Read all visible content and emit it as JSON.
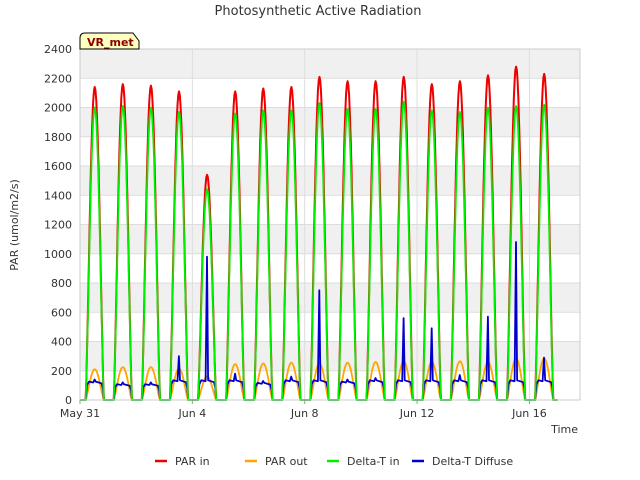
{
  "chart_data": {
    "type": "line",
    "title": "Photosynthetic Active Radiation",
    "xlabel": "Time",
    "ylabel": "PAR (umol/m2/s)",
    "site_label": "VR_met",
    "xlim": [
      0,
      17.8
    ],
    "ylim": [
      0,
      2400
    ],
    "yticks": [
      0,
      200,
      400,
      600,
      800,
      1000,
      1200,
      1400,
      1600,
      1800,
      2000,
      2200,
      2400
    ],
    "xticks": [
      {
        "value": 0,
        "label": "May 31"
      },
      {
        "value": 4,
        "label": "Jun 4"
      },
      {
        "value": 8,
        "label": "Jun 8"
      },
      {
        "value": 12,
        "label": "Jun 12"
      },
      {
        "value": 16,
        "label": "Jun 16"
      }
    ],
    "grid": true,
    "legend_position": "bottom",
    "day_peaks": {
      "days": [
        0,
        1,
        2,
        3,
        4,
        5,
        6,
        7,
        8,
        9,
        10,
        11,
        12,
        13,
        14,
        15,
        16
      ],
      "par_in": [
        2140,
        2160,
        2150,
        2110,
        1540,
        2110,
        2130,
        2140,
        2210,
        2180,
        2180,
        2210,
        2160,
        2180,
        2220,
        2280,
        2230
      ],
      "par_out": [
        210,
        225,
        225,
        215,
        160,
        245,
        250,
        255,
        250,
        255,
        260,
        265,
        260,
        265,
        260,
        285,
        285
      ],
      "delta_t_in": [
        2000,
        2010,
        2000,
        1970,
        1440,
        1960,
        1980,
        1980,
        2030,
        1990,
        1990,
        2040,
        1980,
        1970,
        2000,
        2010,
        2020
      ],
      "diffuse": [
        140,
        120,
        120,
        300,
        980,
        180,
        130,
        160,
        750,
        140,
        150,
        560,
        490,
        170,
        570,
        1080,
        290
      ]
    },
    "series": [
      {
        "name": "PAR in",
        "key": "par_in",
        "color": "#ee0000"
      },
      {
        "name": "PAR out",
        "key": "par_out",
        "color": "#ffa500"
      },
      {
        "name": "Delta-T in",
        "key": "delta_t_in",
        "color": "#00ee00"
      },
      {
        "name": "Delta-T Diffuse",
        "key": "diffuse",
        "color": "#0000cd"
      }
    ]
  }
}
